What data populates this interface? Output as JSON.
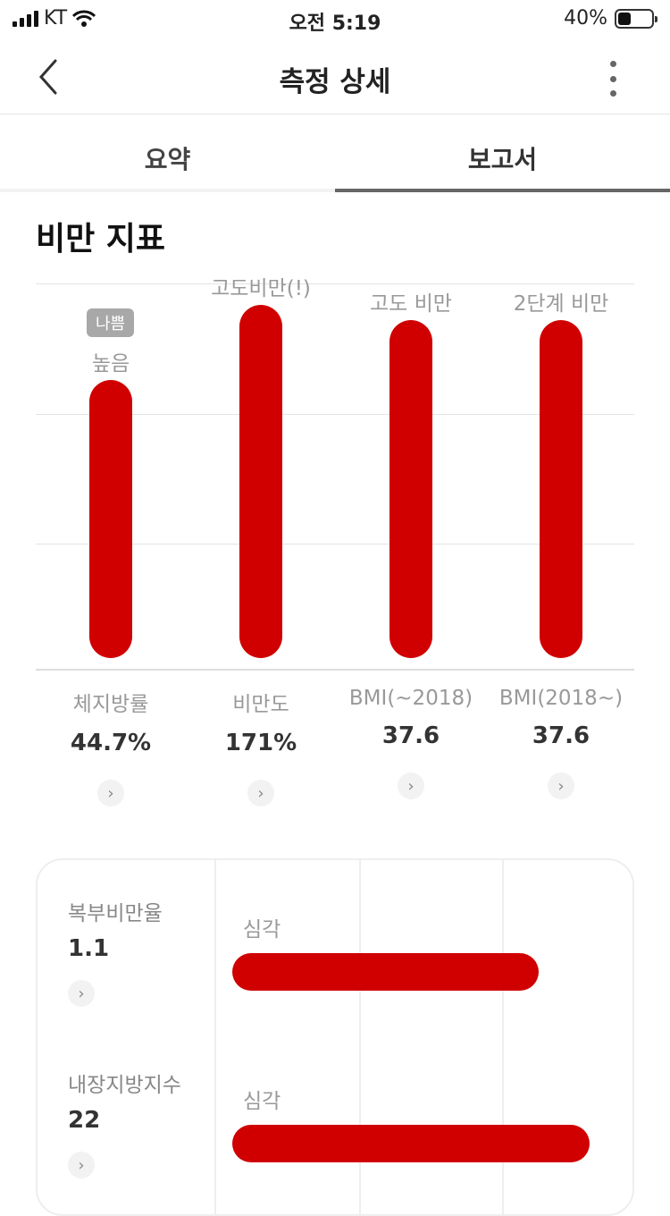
{
  "status": {
    "carrier": "KT",
    "time": "오전 5:19",
    "battery": "40%",
    "battery_level": 0.4
  },
  "nav": {
    "title": "측정 상세",
    "back_icon": "chevron-left-icon",
    "more_icon": "more-vertical-icon"
  },
  "tabs": [
    {
      "label": "요약",
      "active": false
    },
    {
      "label": "보고서",
      "active": true
    }
  ],
  "section": {
    "title": "비만 지표"
  },
  "chart_data": {
    "type": "bar",
    "categories": [
      "체지방률",
      "비만도",
      "BMI(~2018)",
      "BMI(2018~)"
    ],
    "values": [
      44.7,
      171,
      37.6,
      37.6
    ],
    "value_labels": [
      "44.7%",
      "171%",
      "37.6",
      "37.6"
    ],
    "grade_labels": [
      "높음",
      "고도비만(!)",
      "고도 비만",
      "2단계 비만"
    ],
    "badge": {
      "index": 0,
      "text": "나쁨"
    },
    "relative_levels": [
      0.74,
      0.94,
      0.9,
      0.9
    ],
    "color": "#d00000",
    "grid": true
  },
  "abdominal": {
    "rows": [
      {
        "label": "복부비만율",
        "value": "1.1",
        "grade": "심각",
        "level": 0.78
      },
      {
        "label": "내장지방지수",
        "value": "22",
        "grade": "심각",
        "level": 0.91
      }
    ]
  },
  "colors": {
    "accent": "#d00000",
    "badge": "#a8a8a8"
  }
}
